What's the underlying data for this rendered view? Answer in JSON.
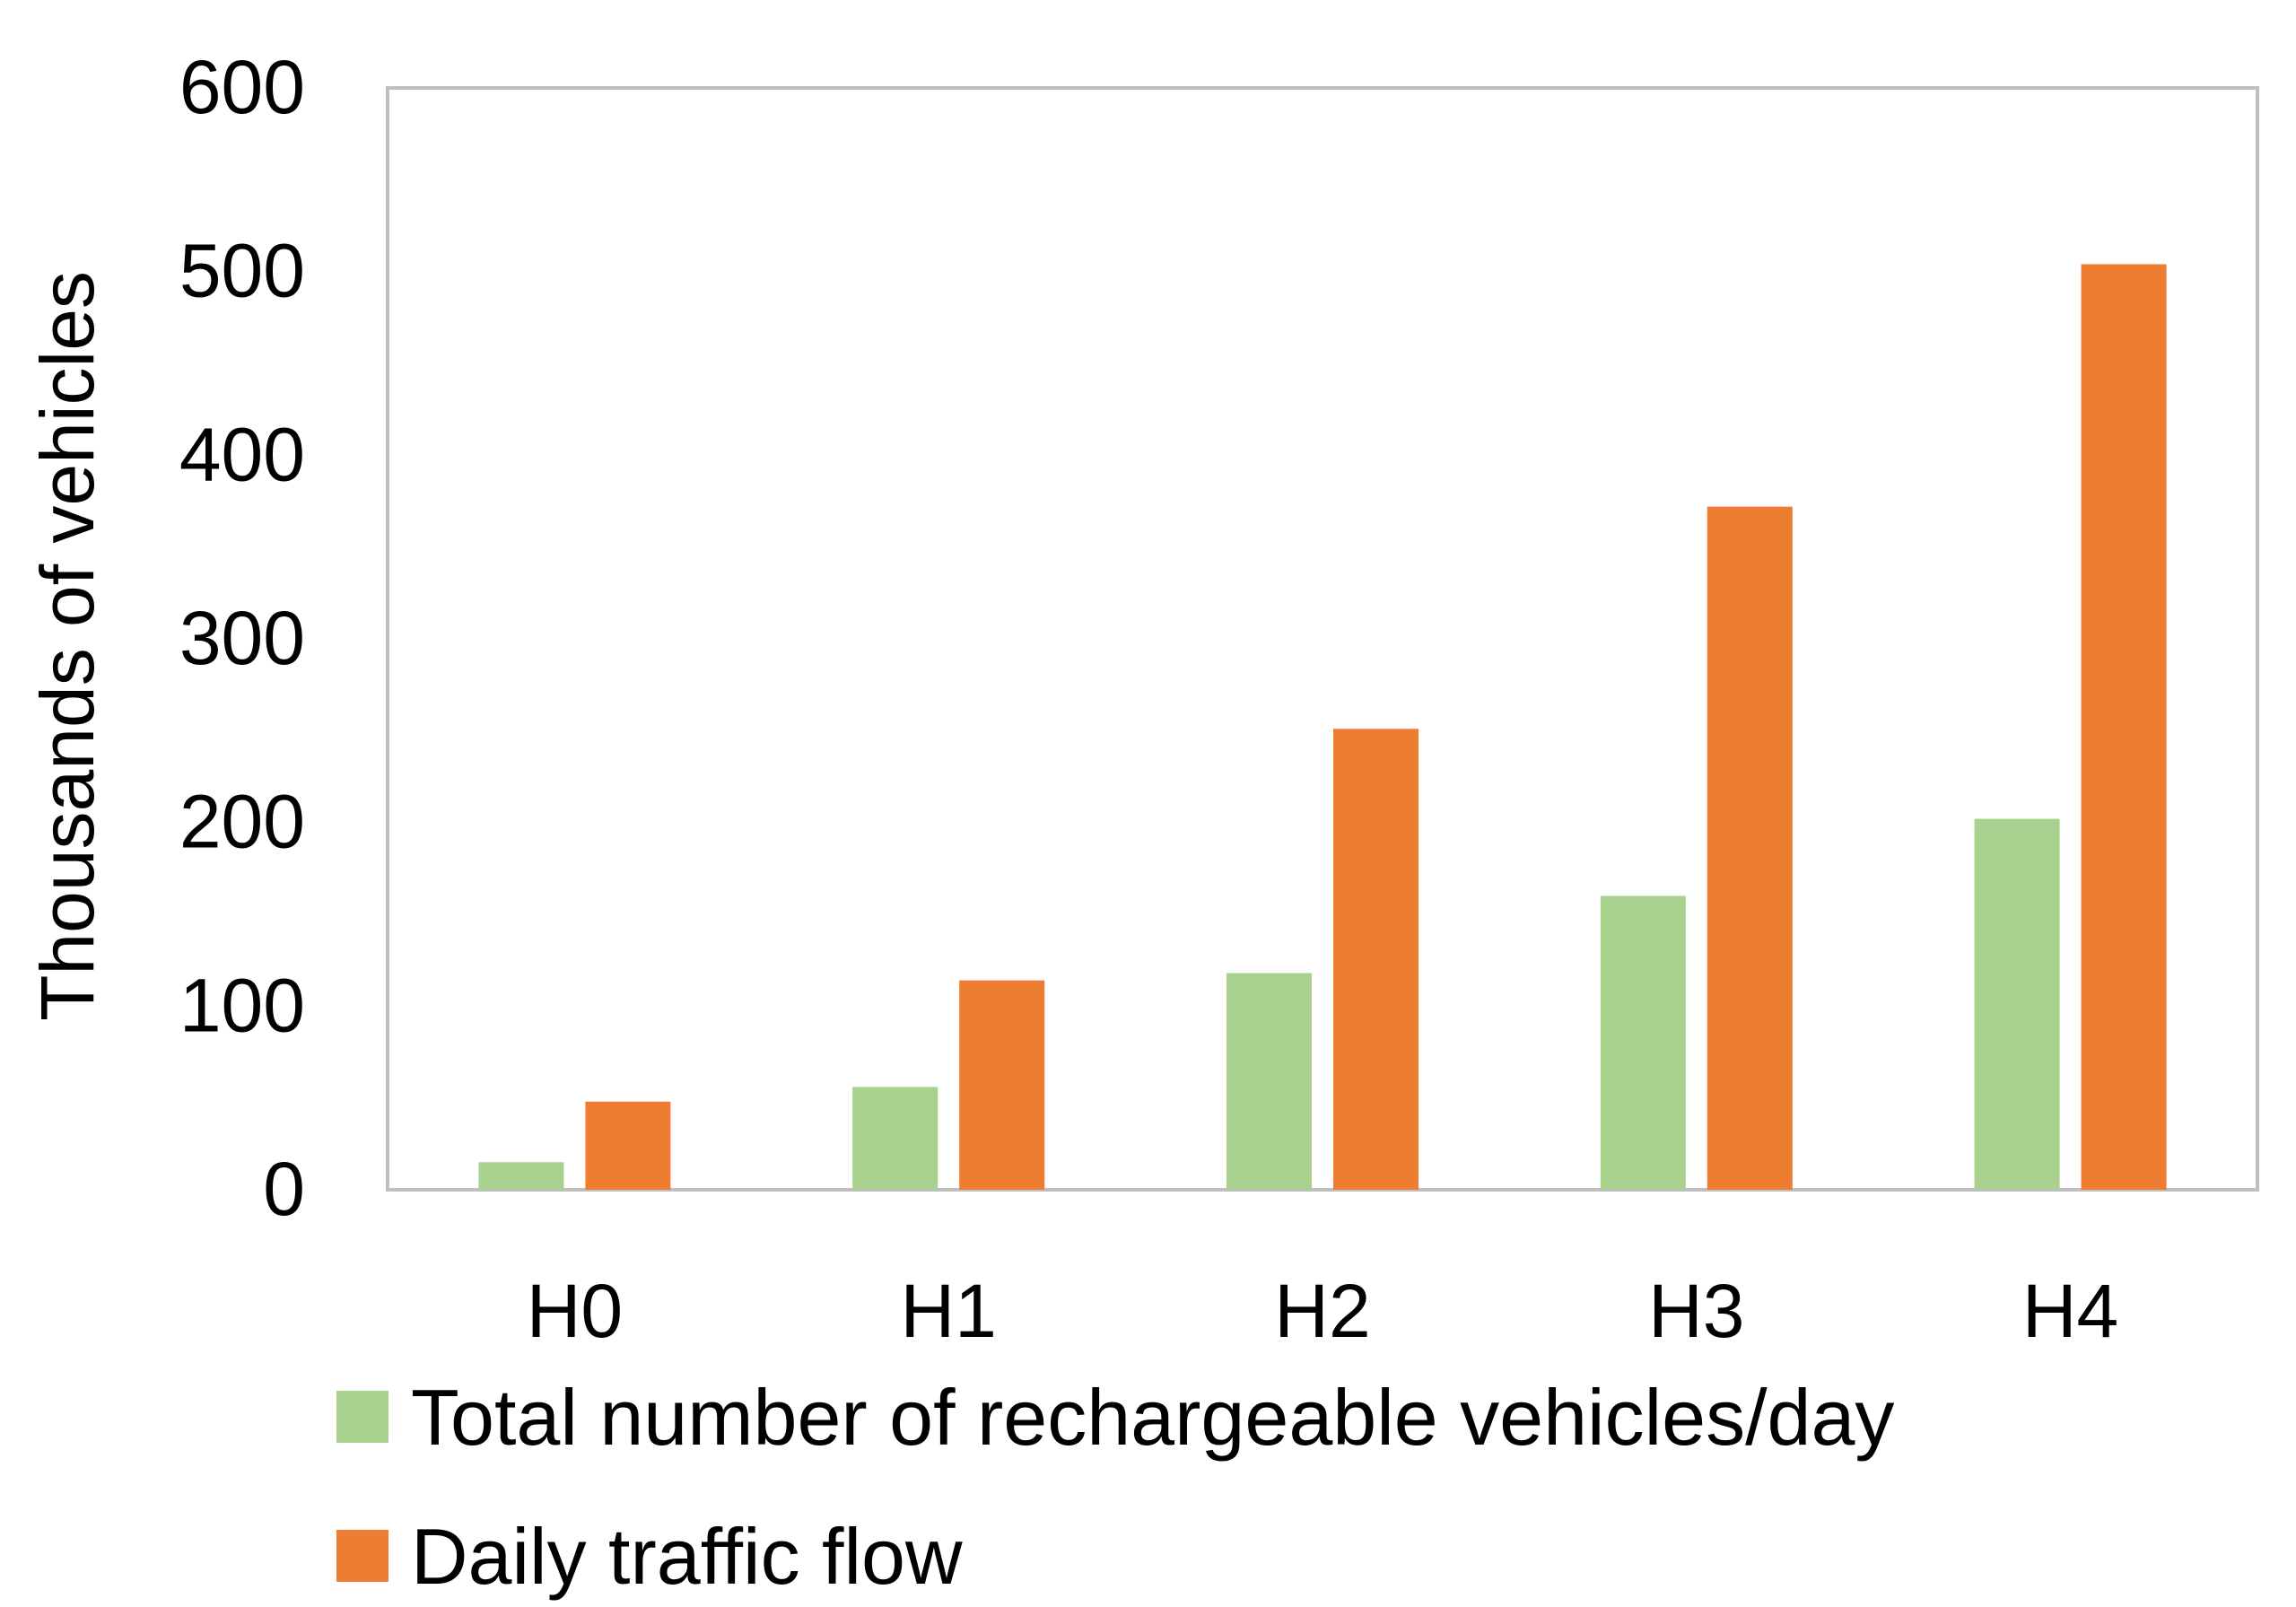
{
  "chart_data": {
    "type": "bar",
    "title": "",
    "xlabel": "",
    "ylabel": "Thousands of vehicles",
    "ylim": [
      0,
      600
    ],
    "yticks": [
      0,
      100,
      200,
      300,
      400,
      500,
      600
    ],
    "grid": false,
    "legend_position": "bottom-left",
    "categories": [
      "H0",
      "H1",
      "H2",
      "H3",
      "H4"
    ],
    "series": [
      {
        "name": "Total number of rechargeable vehicles/day",
        "color": "#A9D18E",
        "values": [
          15,
          56,
          118,
          160,
          202
        ]
      },
      {
        "name": "Daily traffic flow",
        "color": "#ED7D31",
        "values": [
          48,
          114,
          251,
          372,
          504
        ]
      }
    ]
  }
}
